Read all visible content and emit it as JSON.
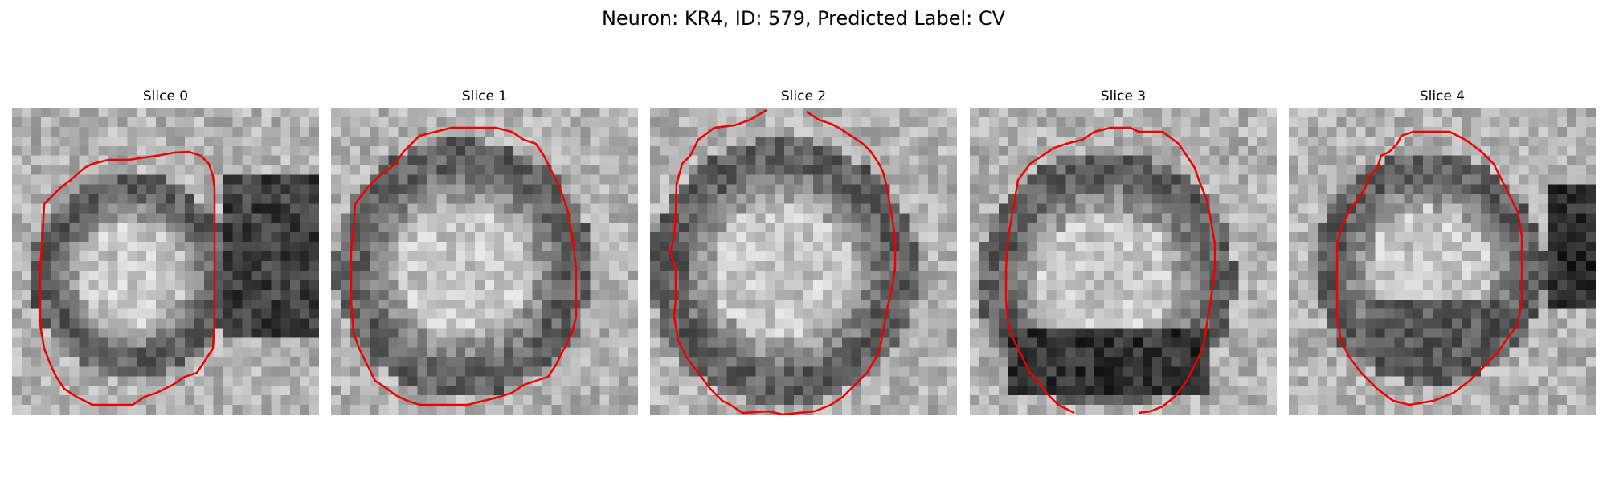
{
  "figure": {
    "title": "Neuron: KR4, ID: 579, Predicted Label: CV"
  },
  "panels": [
    {
      "title": "Slice 0"
    },
    {
      "title": "Slice 1"
    },
    {
      "title": "Slice 2"
    },
    {
      "title": "Slice 3"
    },
    {
      "title": "Slice 4"
    }
  ],
  "image_description_colors": {
    "background": "#ffffff",
    "contour": "#ee0000"
  }
}
